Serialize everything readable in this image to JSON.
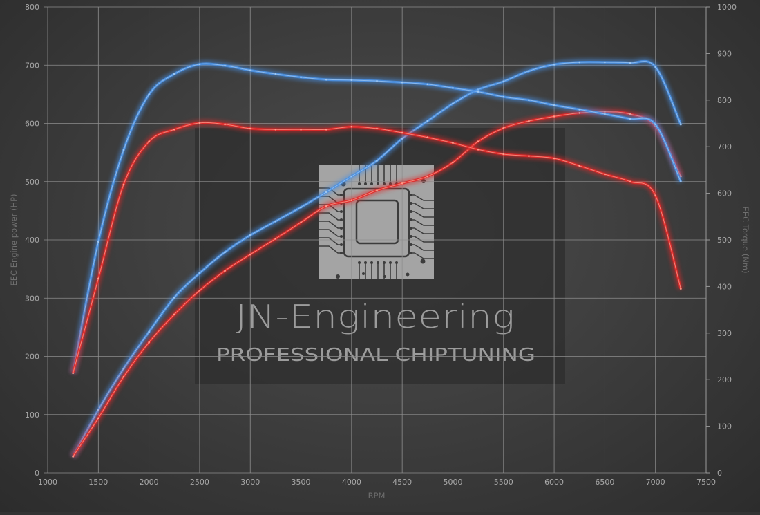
{
  "chart_data": {
    "type": "line",
    "title": "",
    "xlabel": "RPM",
    "ylabel": "EEC Engine power (HP)",
    "y2label": "EEC Torque (Nm)",
    "xlim": [
      1000,
      7500
    ],
    "ylim": [
      0,
      800
    ],
    "y2lim": [
      0,
      1000
    ],
    "grid": true,
    "x_ticks": [
      1000,
      1500,
      2000,
      2500,
      3000,
      3500,
      4000,
      4500,
      5000,
      5500,
      6000,
      6500,
      7000,
      7500
    ],
    "y_ticks": [
      0,
      100,
      200,
      300,
      400,
      500,
      600,
      700,
      800
    ],
    "y2_ticks": [
      0,
      100,
      200,
      300,
      400,
      500,
      600,
      700,
      800,
      900,
      1000
    ],
    "x": [
      1250,
      1500,
      1750,
      2000,
      2250,
      2500,
      2750,
      3000,
      3250,
      3500,
      3750,
      4000,
      4250,
      4500,
      4750,
      5000,
      5250,
      5500,
      5750,
      6000,
      6250,
      6500,
      6750,
      7000,
      7250
    ],
    "series": [
      {
        "axis": "left",
        "color": "#4a90e2",
        "values": [
          28,
          108,
          179,
          242,
          301,
          343,
          379,
          408,
          432,
          456,
          482,
          509,
          536,
          574,
          604,
          634,
          658,
          672,
          690,
          701,
          705,
          705,
          704,
          697,
          598
        ]
      },
      {
        "axis": "left",
        "color": "#e02a2a",
        "values": [
          28,
          94,
          165,
          224,
          272,
          313,
          347,
          375,
          402,
          430,
          458,
          468,
          485,
          497,
          509,
          533,
          569,
          592,
          604,
          612,
          618,
          620,
          616,
          595,
          509
        ]
      },
      {
        "axis": "right",
        "color": "#4a90e2",
        "values": [
          214,
          496,
          693,
          812,
          856,
          877,
          874,
          864,
          856,
          849,
          844,
          843,
          841,
          838,
          834,
          826,
          818,
          807,
          800,
          789,
          780,
          770,
          760,
          748,
          625
        ]
      },
      {
        "axis": "right",
        "color": "#e02a2a",
        "values": [
          214,
          417,
          619,
          711,
          737,
          751,
          748,
          739,
          737,
          737,
          737,
          743,
          739,
          730,
          720,
          708,
          694,
          684,
          680,
          675,
          659,
          641,
          625,
          595,
          395
        ]
      }
    ]
  },
  "watermark": {
    "title": "JN-Engineering",
    "subtitle": "PROFESSIONAL CHIPTUNING",
    "icon": "circuit-chip-icon"
  }
}
